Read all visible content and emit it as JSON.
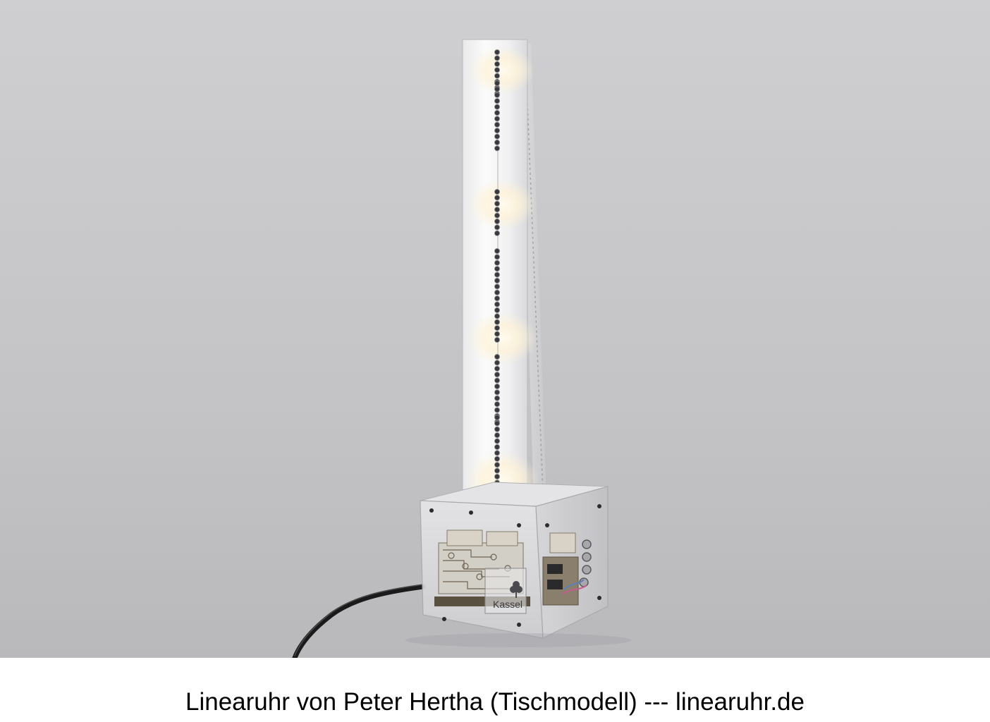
{
  "caption": "Linearuhr von Peter Hertha (Tischmodell) --- linearuhr.de",
  "photo": {
    "base_logo_text": "Kassel",
    "colors": {
      "backdrop": "#c6c6c8",
      "glow": "#fff6dc",
      "acrylic": "#e8e8ea",
      "cable": "#1a1a1a",
      "circuit_board": "#5a5040"
    }
  }
}
